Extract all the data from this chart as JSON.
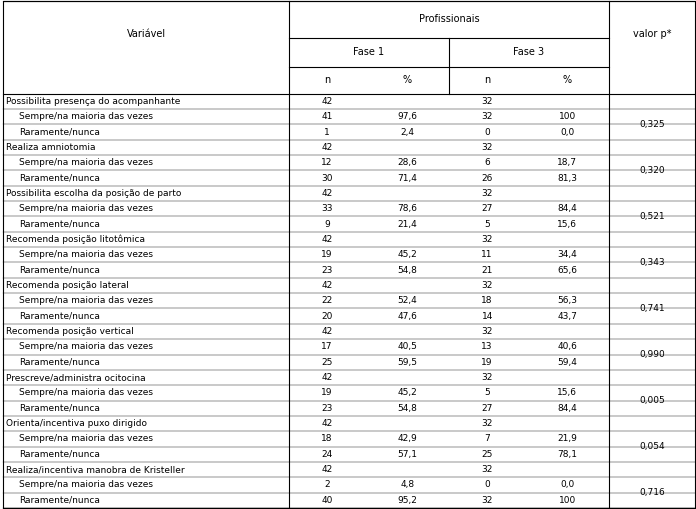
{
  "title": "Profissionais",
  "fase1_label": "Fase 1",
  "fase3_label": "Fase 3",
  "valorP_label": "valor p*",
  "variavel_label": "Variável",
  "rows": [
    {
      "label": "Possibilita presença do acompanhante",
      "indent": false,
      "f1_n": "42",
      "f1_pct": "",
      "f3_n": "32",
      "f3_pct": "",
      "valor_p": "",
      "vp_row": false
    },
    {
      "label": "Sempre/na maioria das vezes",
      "indent": true,
      "f1_n": "41",
      "f1_pct": "97,6",
      "f3_n": "32",
      "f3_pct": "100",
      "valor_p": "",
      "vp_row": false
    },
    {
      "label": "Raramente/nunca",
      "indent": true,
      "f1_n": "1",
      "f1_pct": "2,4",
      "f3_n": "0",
      "f3_pct": "0,0",
      "valor_p": "0,325",
      "vp_row": true
    },
    {
      "label": "Realiza amniotomia",
      "indent": false,
      "f1_n": "42",
      "f1_pct": "",
      "f3_n": "32",
      "f3_pct": "",
      "valor_p": "",
      "vp_row": false
    },
    {
      "label": "Sempre/na maioria das vezes",
      "indent": true,
      "f1_n": "12",
      "f1_pct": "28,6",
      "f3_n": "6",
      "f3_pct": "18,7",
      "valor_p": "",
      "vp_row": false
    },
    {
      "label": "Raramente/nunca",
      "indent": true,
      "f1_n": "30",
      "f1_pct": "71,4",
      "f3_n": "26",
      "f3_pct": "81,3",
      "valor_p": "0,320",
      "vp_row": true
    },
    {
      "label": "Possibilita escolha da posição de parto",
      "indent": false,
      "f1_n": "42",
      "f1_pct": "",
      "f3_n": "32",
      "f3_pct": "",
      "valor_p": "",
      "vp_row": false
    },
    {
      "label": "Sempre/na maioria das vezes",
      "indent": true,
      "f1_n": "33",
      "f1_pct": "78,6",
      "f3_n": "27",
      "f3_pct": "84,4",
      "valor_p": "",
      "vp_row": false
    },
    {
      "label": "Raramente/nunca",
      "indent": true,
      "f1_n": "9",
      "f1_pct": "21,4",
      "f3_n": "5",
      "f3_pct": "15,6",
      "valor_p": "0,521",
      "vp_row": true
    },
    {
      "label": "Recomenda posição litotômica",
      "indent": false,
      "f1_n": "42",
      "f1_pct": "",
      "f3_n": "32",
      "f3_pct": "",
      "valor_p": "",
      "vp_row": false
    },
    {
      "label": "Sempre/na maioria das vezes",
      "indent": true,
      "f1_n": "19",
      "f1_pct": "45,2",
      "f3_n": "11",
      "f3_pct": "34,4",
      "valor_p": "",
      "vp_row": false
    },
    {
      "label": "Raramente/nunca",
      "indent": true,
      "f1_n": "23",
      "f1_pct": "54,8",
      "f3_n": "21",
      "f3_pct": "65,6",
      "valor_p": "0,343",
      "vp_row": true
    },
    {
      "label": "Recomenda posição lateral",
      "indent": false,
      "f1_n": "42",
      "f1_pct": "",
      "f3_n": "32",
      "f3_pct": "",
      "valor_p": "",
      "vp_row": false
    },
    {
      "label": "Sempre/na maioria das vezes",
      "indent": true,
      "f1_n": "22",
      "f1_pct": "52,4",
      "f3_n": "18",
      "f3_pct": "56,3",
      "valor_p": "",
      "vp_row": false
    },
    {
      "label": "Raramente/nunca",
      "indent": true,
      "f1_n": "20",
      "f1_pct": "47,6",
      "f3_n": "14",
      "f3_pct": "43,7",
      "valor_p": "0,741",
      "vp_row": true
    },
    {
      "label": "Recomenda posição vertical",
      "indent": false,
      "f1_n": "42",
      "f1_pct": "",
      "f3_n": "32",
      "f3_pct": "",
      "valor_p": "",
      "vp_row": false
    },
    {
      "label": "Sempre/na maioria das vezes",
      "indent": true,
      "f1_n": "17",
      "f1_pct": "40,5",
      "f3_n": "13",
      "f3_pct": "40,6",
      "valor_p": "",
      "vp_row": false
    },
    {
      "label": "Raramente/nunca",
      "indent": true,
      "f1_n": "25",
      "f1_pct": "59,5",
      "f3_n": "19",
      "f3_pct": "59,4",
      "valor_p": "0,990",
      "vp_row": true
    },
    {
      "label": "Prescreve/administra ocitocina",
      "indent": false,
      "f1_n": "42",
      "f1_pct": "",
      "f3_n": "32",
      "f3_pct": "",
      "valor_p": "",
      "vp_row": false
    },
    {
      "label": "Sempre/na maioria das vezes",
      "indent": true,
      "f1_n": "19",
      "f1_pct": "45,2",
      "f3_n": "5",
      "f3_pct": "15,6",
      "valor_p": "",
      "vp_row": false
    },
    {
      "label": "Raramente/nunca",
      "indent": true,
      "f1_n": "23",
      "f1_pct": "54,8",
      "f3_n": "27",
      "f3_pct": "84,4",
      "valor_p": "0,005",
      "vp_row": true
    },
    {
      "label": "Orienta/incentiva puxo dirigido",
      "indent": false,
      "f1_n": "42",
      "f1_pct": "",
      "f3_n": "32",
      "f3_pct": "",
      "valor_p": "",
      "vp_row": false
    },
    {
      "label": "Sempre/na maioria das vezes",
      "indent": true,
      "f1_n": "18",
      "f1_pct": "42,9",
      "f3_n": "7",
      "f3_pct": "21,9",
      "valor_p": "",
      "vp_row": false
    },
    {
      "label": "Raramente/nunca",
      "indent": true,
      "f1_n": "24",
      "f1_pct": "57,1",
      "f3_n": "25",
      "f3_pct": "78,1",
      "valor_p": "0,054",
      "vp_row": true
    },
    {
      "label": "Realiza/incentiva manobra de Kristeller",
      "indent": false,
      "f1_n": "42",
      "f1_pct": "",
      "f3_n": "32",
      "f3_pct": "",
      "valor_p": "",
      "vp_row": false
    },
    {
      "label": "Sempre/na maioria das vezes",
      "indent": true,
      "f1_n": "2",
      "f1_pct": "4,8",
      "f3_n": "0",
      "f3_pct": "0,0",
      "valor_p": "",
      "vp_row": false
    },
    {
      "label": "Raramente/nunca",
      "indent": true,
      "f1_n": "40",
      "f1_pct": "95,2",
      "f3_n": "32",
      "f3_pct": "100",
      "valor_p": "0,716",
      "vp_row": true
    }
  ],
  "font_size": 6.5,
  "header_font_size": 7.0,
  "fig_width": 6.96,
  "fig_height": 5.09,
  "lw_thick": 0.8,
  "lw_thin": 0.3
}
